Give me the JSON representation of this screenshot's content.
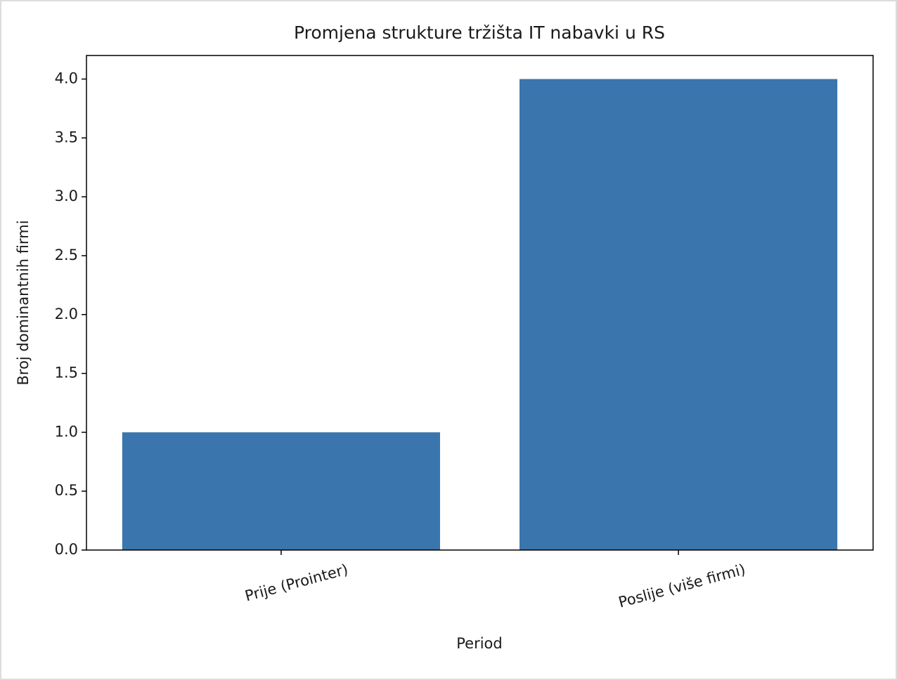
{
  "chart_data": {
    "type": "bar",
    "title": "Promjena strukture tržišta IT nabavki u RS",
    "x_label": "Period",
    "y_label": "Broj dominantnih firmi",
    "categories": [
      "Prije (Prointer)",
      "Poslije (više firmi)"
    ],
    "values": [
      1,
      4
    ],
    "color": "#3a75ae",
    "ylim": [
      0,
      4.2
    ],
    "yticks": [
      {
        "value": 0,
        "label": "0.0"
      },
      0.5,
      {
        "value": 1,
        "label": "1.0"
      },
      1.5,
      {
        "value": 2,
        "label": "2.0"
      },
      2.5,
      {
        "value": 3,
        "label": "3.0"
      },
      3.5,
      {
        "value": 4,
        "label": "4.0"
      }
    ],
    "grid": false
  }
}
